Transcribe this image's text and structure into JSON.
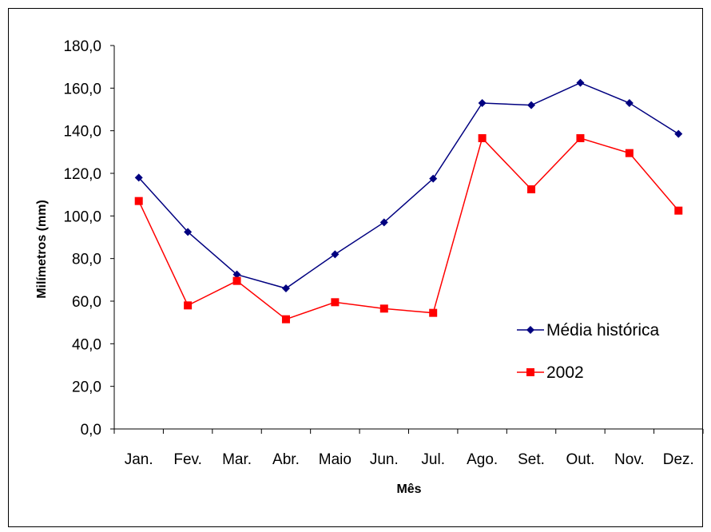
{
  "chart_data": {
    "type": "line",
    "title": "",
    "xlabel": "Mês",
    "ylabel": "Milímetros (mm)",
    "categories": [
      "Jan.",
      "Fev.",
      "Mar.",
      "Abr.",
      "Maio",
      "Jun.",
      "Jul.",
      "Ago.",
      "Set.",
      "Out.",
      "Nov.",
      "Dez."
    ],
    "yticks": [
      "0,0",
      "20,0",
      "40,0",
      "60,0",
      "80,0",
      "100,0",
      "120,0",
      "140,0",
      "160,0",
      "180,0"
    ],
    "ylim": [
      0,
      180
    ],
    "grid": false,
    "legend_position": "right",
    "series": [
      {
        "name": "Média histórica",
        "color": "#000080",
        "marker": "diamond",
        "values": [
          118.0,
          92.5,
          72.5,
          66.0,
          82.0,
          97.0,
          117.5,
          153.0,
          152.0,
          162.5,
          153.0,
          138.5
        ]
      },
      {
        "name": "2002",
        "color": "#ff0000",
        "marker": "square",
        "values": [
          107.0,
          58.0,
          69.5,
          51.5,
          59.5,
          56.5,
          54.5,
          136.5,
          112.5,
          136.5,
          129.5,
          102.5
        ]
      }
    ]
  }
}
